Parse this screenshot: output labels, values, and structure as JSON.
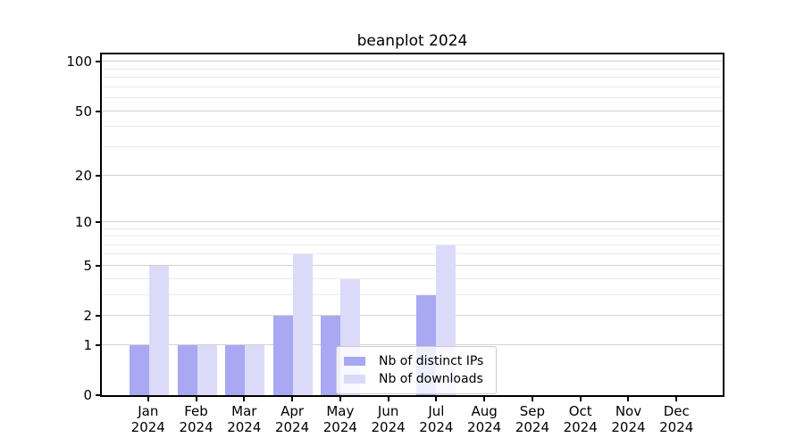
{
  "title": "beanplot 2024",
  "chart_data": {
    "type": "bar",
    "title": "beanplot 2024",
    "categories": [
      "Jan",
      "Feb",
      "Mar",
      "Apr",
      "May",
      "Jun",
      "Jul",
      "Aug",
      "Sep",
      "Oct",
      "Nov",
      "Dec"
    ],
    "year_label": "2024",
    "series": [
      {
        "name": "Nb of distinct IPs",
        "color": "#a8a8f3",
        "values": [
          1,
          1,
          1,
          2,
          2,
          0,
          3,
          0,
          0,
          0,
          0,
          0
        ]
      },
      {
        "name": "Nb of downloads",
        "color": "#dbdbf9",
        "values": [
          5,
          1,
          1,
          6,
          4,
          0,
          7,
          0,
          0,
          0,
          0,
          0
        ]
      }
    ],
    "yscale": "log10(1+x)",
    "ylim": [
      0,
      111
    ],
    "y_major_ticks": [
      0,
      1,
      2,
      5,
      10,
      20,
      50,
      100
    ],
    "y_minor_ticks": [
      3,
      4,
      6,
      7,
      8,
      9,
      30,
      40,
      60,
      70,
      80,
      90
    ],
    "grid": "both",
    "legend_position": "lower center",
    "colors": {
      "axis": "#000000",
      "major_grid": "#d2d2d2",
      "minor_grid": "#ebebeb",
      "background": "#ffffff"
    }
  }
}
